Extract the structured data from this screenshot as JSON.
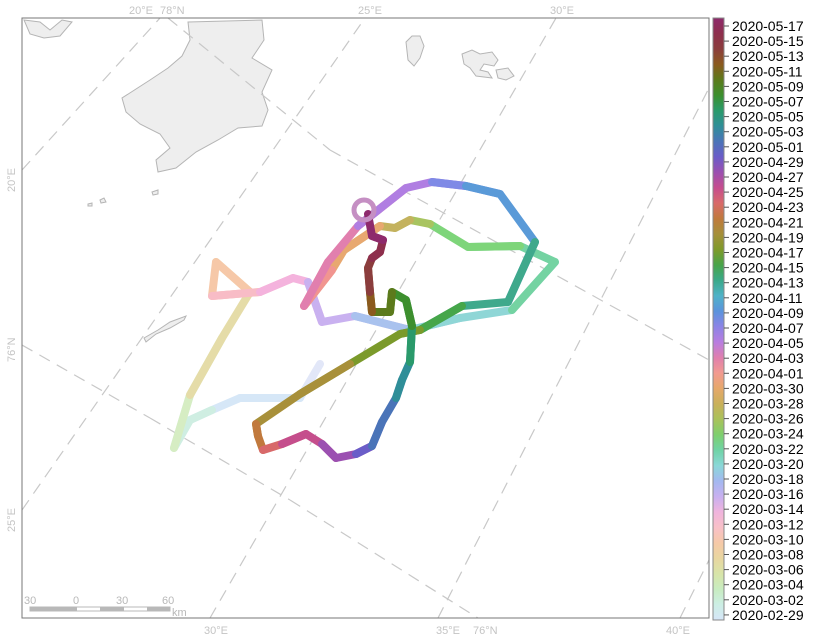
{
  "graticule_labels": {
    "top": [
      "20°E",
      "78°N",
      "25°E",
      "30°E"
    ],
    "bottom": [
      "30°E",
      "35°E",
      "76°N",
      "40°E"
    ],
    "left": [
      "20°E",
      "76°N",
      "25°E"
    ]
  },
  "scale_bar": {
    "ticks": [
      "30",
      "0",
      "30",
      "60"
    ],
    "unit": "km"
  },
  "legend": {
    "dates": [
      "2020-05-17",
      "2020-05-15",
      "2020-05-13",
      "2020-05-11",
      "2020-05-09",
      "2020-05-07",
      "2020-05-05",
      "2020-05-03",
      "2020-05-01",
      "2020-04-29",
      "2020-04-27",
      "2020-04-25",
      "2020-04-23",
      "2020-04-21",
      "2020-04-19",
      "2020-04-17",
      "2020-04-15",
      "2020-04-13",
      "2020-04-11",
      "2020-04-09",
      "2020-04-07",
      "2020-04-05",
      "2020-04-03",
      "2020-04-01",
      "2020-03-30",
      "2020-03-28",
      "2020-03-26",
      "2020-03-24",
      "2020-03-22",
      "2020-03-20",
      "2020-03-18",
      "2020-03-16",
      "2020-03-14",
      "2020-03-12",
      "2020-03-10",
      "2020-03-08",
      "2020-03-06",
      "2020-03-04",
      "2020-03-02",
      "2020-02-29"
    ],
    "colors": [
      "#8e2a6c",
      "#8e2f4d",
      "#8b3d3d",
      "#8b5a1e",
      "#5c7a1c",
      "#3c8f2e",
      "#2a9a6b",
      "#2f8f98",
      "#4b74b8",
      "#6a5cc8",
      "#9b4fb0",
      "#c64d8e",
      "#d96a6a",
      "#c07a3c",
      "#a58f3a",
      "#7e9a2a",
      "#48a44a",
      "#3aa98a",
      "#4fb2c8",
      "#5a93dc",
      "#8c84e6",
      "#b87de0",
      "#e07fae",
      "#f29a90",
      "#e6a86a",
      "#c9b05a",
      "#a9c25a",
      "#7ecf6e",
      "#6fd3a6",
      "#8ad8d8",
      "#a3b8f0",
      "#c8b0f0",
      "#f0b4dd",
      "#f8c0c8",
      "#f6c9a8",
      "#e9d6a0",
      "#d8e4a8",
      "#c8ecc0",
      "#cceee4",
      "#d6e6f8"
    ]
  },
  "track": {
    "stroke_width": 8,
    "segments": [
      {
        "date": "2020-03-02",
        "color": "#e2e7f8"
      },
      {
        "date": "2020-03-04",
        "color": "#d6e7f7"
      },
      {
        "date": "2020-03-06",
        "color": "#cfeee2"
      },
      {
        "date": "2020-03-08",
        "color": "#d6edc3"
      },
      {
        "date": "2020-03-10",
        "color": "#e5dca8"
      },
      {
        "date": "2020-03-12",
        "color": "#f6c8a8"
      },
      {
        "date": "2020-03-14",
        "color": "#f8bcc6"
      },
      {
        "date": "2020-03-16",
        "color": "#f4b3dd"
      },
      {
        "date": "2020-03-18",
        "color": "#c9b1f0"
      },
      {
        "date": "2020-03-20",
        "color": "#a9c2ee"
      },
      {
        "date": "2020-03-22",
        "color": "#8fd6d6"
      },
      {
        "date": "2020-03-24",
        "color": "#74d3a2"
      },
      {
        "date": "2020-03-26",
        "color": "#7ed57a"
      },
      {
        "date": "2020-03-28",
        "color": "#a8c460"
      },
      {
        "date": "2020-03-30",
        "color": "#c4b25e"
      },
      {
        "date": "2020-04-01",
        "color": "#e8a870"
      },
      {
        "date": "2020-04-03",
        "color": "#f19590"
      },
      {
        "date": "2020-04-05",
        "color": "#e17fae"
      },
      {
        "date": "2020-04-07",
        "color": "#b07ee2"
      },
      {
        "date": "2020-04-09",
        "color": "#7f8ae6"
      },
      {
        "date": "2020-04-11",
        "color": "#5a9ad8"
      },
      {
        "date": "2020-04-13",
        "color": "#3fa98c"
      },
      {
        "date": "2020-04-15",
        "color": "#46a64a"
      },
      {
        "date": "2020-04-17",
        "color": "#7b9a2b"
      },
      {
        "date": "2020-04-19",
        "color": "#a8903a"
      },
      {
        "date": "2020-04-21",
        "color": "#c1793d"
      },
      {
        "date": "2020-04-23",
        "color": "#d8696a"
      },
      {
        "date": "2020-04-25",
        "color": "#c54e8c"
      },
      {
        "date": "2020-04-27",
        "color": "#9b50b1"
      },
      {
        "date": "2020-04-29",
        "color": "#6a5dc8"
      },
      {
        "date": "2020-05-01",
        "color": "#4a74b8"
      },
      {
        "date": "2020-05-03",
        "color": "#2f8e98"
      },
      {
        "date": "2020-05-05",
        "color": "#2a9a6b"
      },
      {
        "date": "2020-05-07",
        "color": "#3d8f2e"
      },
      {
        "date": "2020-05-09",
        "color": "#5c7a1c"
      },
      {
        "date": "2020-05-11",
        "color": "#8b5a1e"
      },
      {
        "date": "2020-05-13",
        "color": "#8b3d3d"
      },
      {
        "date": "2020-05-15",
        "color": "#8e2f4d"
      },
      {
        "date": "2020-05-17",
        "color": "#8e2a6c"
      }
    ]
  },
  "final_position_color": "#c58fc3"
}
